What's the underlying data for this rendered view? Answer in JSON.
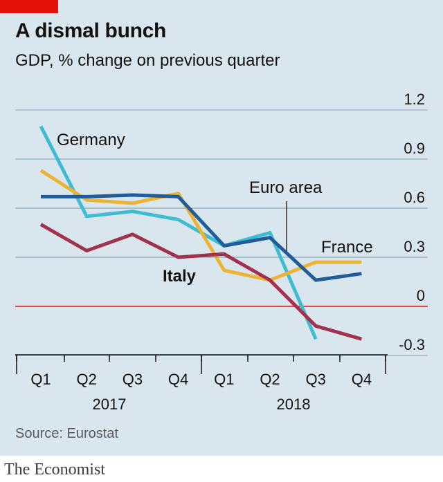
{
  "header": {
    "title": "A dismal bunch",
    "subtitle": "GDP, % change on previous quarter"
  },
  "footer": {
    "source": "Source: Eurostat",
    "brand": "The Economist"
  },
  "colors": {
    "background": "#d9e6ee",
    "accent": "#e3120b",
    "germany": "#3ebcd2",
    "euro_area": "#1f5c99",
    "france": "#ebb434",
    "italy": "#a1314c",
    "zero_line": "#e3120b",
    "grid": "#8fa9b8"
  },
  "chart_data": {
    "type": "line",
    "title": "A dismal bunch",
    "subtitle": "GDP, % change on previous quarter",
    "x": [
      "Q1",
      "Q2",
      "Q3",
      "Q4",
      "Q1",
      "Q2",
      "Q3",
      "Q4"
    ],
    "year_labels": [
      "2017",
      "2018"
    ],
    "ylim": [
      -0.3,
      1.2
    ],
    "yticks": [
      "1.2",
      "0.9",
      "0.6",
      "0.3",
      "0",
      "-0.3"
    ],
    "grid": true,
    "series": [
      {
        "name": "Germany",
        "values": [
          1.1,
          0.55,
          0.58,
          0.53,
          0.37,
          0.45,
          -0.2,
          null
        ]
      },
      {
        "name": "Euro area",
        "values": [
          0.67,
          0.67,
          0.68,
          0.67,
          0.37,
          0.42,
          0.16,
          0.2
        ]
      },
      {
        "name": "France",
        "values": [
          0.83,
          0.65,
          0.63,
          0.69,
          0.22,
          0.16,
          0.27,
          0.27
        ]
      },
      {
        "name": "Italy",
        "values": [
          0.5,
          0.34,
          0.44,
          0.3,
          0.32,
          0.16,
          -0.12,
          -0.2
        ]
      }
    ],
    "source": "Source: Eurostat"
  }
}
